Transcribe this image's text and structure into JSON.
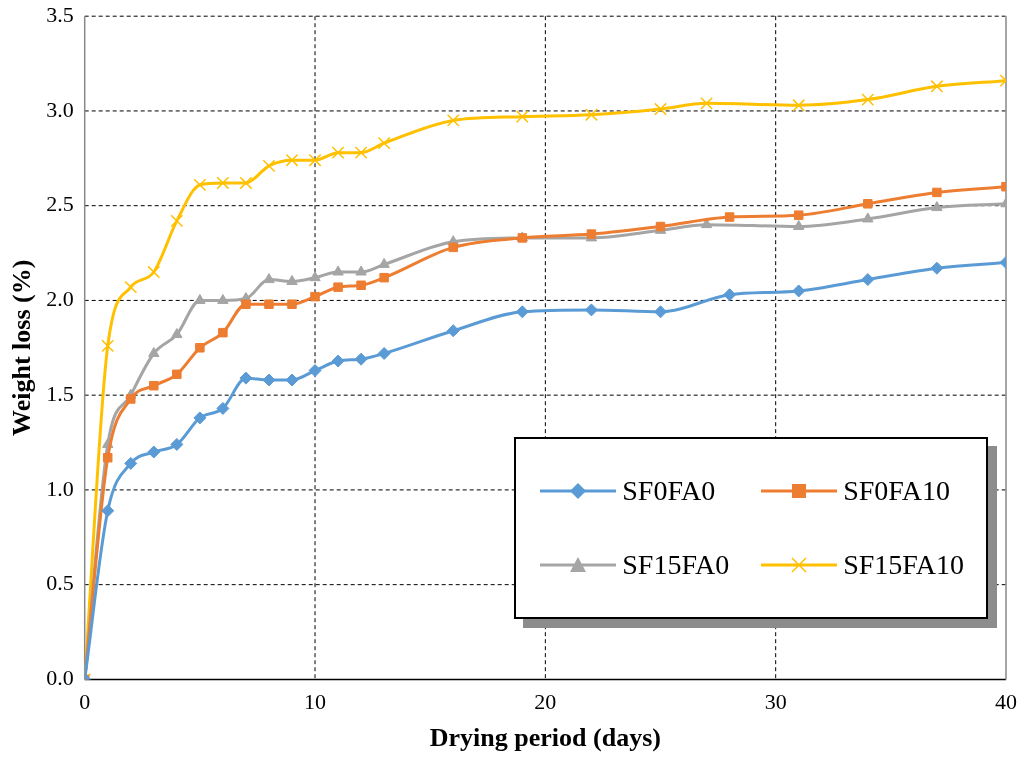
{
  "chart_data": {
    "type": "line",
    "xlabel": "Drying period (days)",
    "ylabel": "Weight loss (%)",
    "xlim": [
      0,
      40
    ],
    "xticks": [
      0,
      10,
      20,
      30,
      40
    ],
    "ylim": [
      0,
      3.5
    ],
    "yticks": [
      {
        "value": 0,
        "label": "0.0"
      },
      0.5,
      {
        "value": 1,
        "label": "1.0"
      },
      1.5,
      {
        "value": 2,
        "label": "2.0"
      },
      2.5,
      {
        "value": 3,
        "label": "3.0"
      },
      3.5
    ],
    "grid": true,
    "legend": "bottom right",
    "line_style": "solid",
    "series": [
      {
        "name": "SF0FA0",
        "color": "#5b9bd5",
        "marker": "diamond",
        "x": [
          0,
          1,
          2,
          3,
          4,
          5,
          6,
          7,
          8,
          9,
          10,
          11,
          12,
          13,
          16,
          19,
          22,
          25,
          28,
          31,
          34,
          37,
          40
        ],
        "values": [
          0,
          0.89,
          1.14,
          1.2,
          1.24,
          1.38,
          1.43,
          1.59,
          1.58,
          1.58,
          1.63,
          1.68,
          1.69,
          1.72,
          1.84,
          1.94,
          1.95,
          1.94,
          2.03,
          2.05,
          2.11,
          2.17,
          2.2
        ]
      },
      {
        "name": "SF0FA10",
        "color": "#ed7d31",
        "marker": "square",
        "x": [
          0,
          1,
          2,
          3,
          4,
          5,
          6,
          7,
          8,
          9,
          10,
          11,
          12,
          13,
          16,
          19,
          22,
          25,
          28,
          31,
          34,
          37,
          40
        ],
        "values": [
          0,
          1.17,
          1.48,
          1.55,
          1.61,
          1.75,
          1.83,
          1.98,
          1.98,
          1.98,
          2.02,
          2.07,
          2.08,
          2.12,
          2.28,
          2.33,
          2.35,
          2.39,
          2.44,
          2.45,
          2.51,
          2.57,
          2.6
        ]
      },
      {
        "name": "SF15FA0",
        "color": "#a5a5a5",
        "marker": "triangle",
        "x": [
          0,
          1,
          2,
          3,
          4,
          5,
          6,
          7,
          8,
          9,
          10,
          11,
          12,
          13,
          16,
          19,
          22,
          25,
          27,
          31,
          34,
          37,
          40
        ],
        "values": [
          0,
          1.24,
          1.5,
          1.72,
          1.82,
          2.0,
          2.0,
          2.01,
          2.11,
          2.1,
          2.12,
          2.15,
          2.15,
          2.19,
          2.31,
          2.33,
          2.33,
          2.37,
          2.4,
          2.39,
          2.43,
          2.49,
          2.51
        ]
      },
      {
        "name": "SF15FA10",
        "color": "#ffc000",
        "marker": "cross",
        "x": [
          0,
          1,
          2,
          3,
          4,
          5,
          6,
          7,
          8,
          9,
          10,
          11,
          12,
          13,
          16,
          19,
          22,
          25,
          27,
          31,
          34,
          37,
          40
        ],
        "values": [
          0,
          1.76,
          2.07,
          2.15,
          2.42,
          2.61,
          2.62,
          2.62,
          2.71,
          2.74,
          2.74,
          2.78,
          2.78,
          2.83,
          2.95,
          2.97,
          2.98,
          3.01,
          3.04,
          3.03,
          3.06,
          3.13,
          3.16
        ]
      }
    ]
  }
}
